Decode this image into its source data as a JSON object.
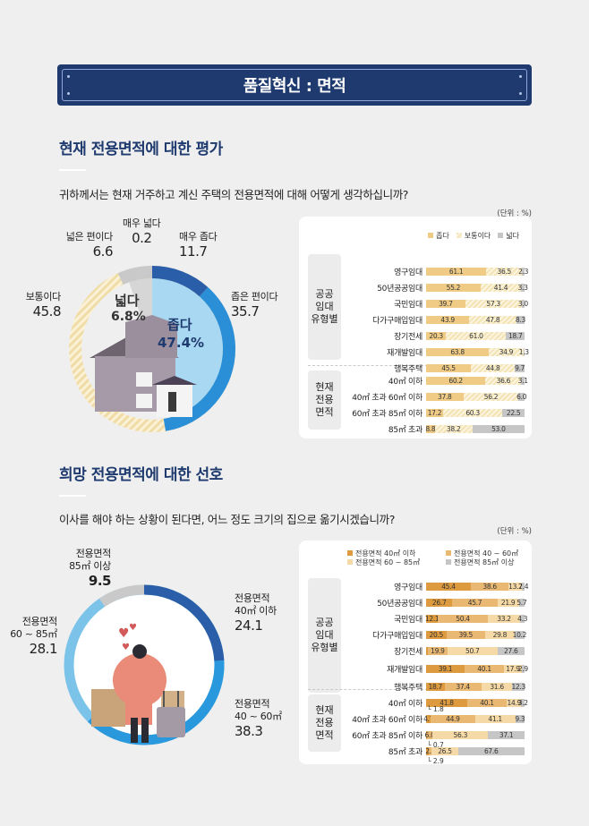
{
  "banner": {
    "title": "품질혁신 : 면적"
  },
  "section1": {
    "title": "현재 전용면적에 대한 평가",
    "question": "귀하께서는 현재 거주하고 계신 주택의 전용면적에 대해 어떻게 생각하십니까?",
    "unit": "(단위 : %)",
    "donut": {
      "center_wide_label": "넓다",
      "center_wide_value": "6.8%",
      "center_narrow_label": "좁다",
      "center_narrow_value": "47.4%",
      "labels": [
        {
          "name": "매우 넓다",
          "value": "0.2"
        },
        {
          "name": "넓은 편이다",
          "value": "6.6"
        },
        {
          "name": "매우 좁다",
          "value": "11.7"
        },
        {
          "name": "좁은 편이다",
          "value": "35.7"
        },
        {
          "name": "보통이다",
          "value": "45.8"
        }
      ]
    },
    "legend": [
      "좁다",
      "보통이다",
      "넓다"
    ],
    "groups": [
      "공공\n임대\n유형별",
      "현재\n전용\n면적"
    ],
    "group1_label": "공공 임대 유형별",
    "group2_label": "현재 전용 면적"
  },
  "section2": {
    "title": "희망 전용면적에 대한 선호",
    "question": "이사를 해야 하는 상황이 된다면, 어느 정도 크기의 집으로 옮기시겠습니까?",
    "unit": "(단위 : %)",
    "donut": {
      "labels": [
        {
          "name1": "전용면적",
          "name2": "85㎡ 이상",
          "value": "9.5"
        },
        {
          "name1": "전용면적",
          "name2": "40㎡ 이하",
          "value": "24.1"
        },
        {
          "name1": "전용면적",
          "name2": "60 ~ 85㎡",
          "value": "28.1"
        },
        {
          "name1": "전용면적",
          "name2": "40 ~ 60㎡",
          "value": "38.3"
        }
      ]
    },
    "legend": [
      "전용면적 40㎡ 이하",
      "전용면적 40 ~ 60㎡",
      "전용면적 60 ~ 85㎡",
      "전용면적 85㎡ 이상"
    ],
    "group1_label": "공공 임대 유형별",
    "group2_label": "현재 전용 면적",
    "notes": [
      "1.8",
      "0.7",
      "2.9"
    ]
  },
  "chart_data": [
    {
      "type": "pie",
      "title": "현재 전용면적에 대한 평가",
      "categories": [
        "매우 좁다",
        "좁은 편이다",
        "보통이다",
        "넓은 편이다",
        "매우 넓다"
      ],
      "values": [
        11.7,
        35.7,
        45.8,
        6.6,
        0.2
      ],
      "summary": {
        "좁다": 47.4,
        "넓다": 6.8
      },
      "unit": "%"
    },
    {
      "type": "bar",
      "orientation": "horizontal-stacked",
      "title": "현재 전용면적에 대한 평가 (유형별)",
      "categories": [
        "영구임대",
        "50년공공임대",
        "국민임대",
        "다가구매입임대",
        "장기전세",
        "재개발임대",
        "행복주택",
        "40㎡ 이하",
        "40㎡ 초과 60㎡ 이하",
        "60㎡ 초과 85㎡ 이하",
        "85㎡ 초과"
      ],
      "series": [
        {
          "name": "좁다",
          "values": [
            61.1,
            55.2,
            39.7,
            43.9,
            20.3,
            63.8,
            45.5,
            60.2,
            37.8,
            17.2,
            8.8
          ]
        },
        {
          "name": "보통이다",
          "values": [
            36.5,
            41.4,
            57.3,
            47.8,
            61.0,
            34.9,
            44.8,
            36.6,
            56.2,
            60.3,
            38.2
          ]
        },
        {
          "name": "넓다",
          "values": [
            2.3,
            3.3,
            3.0,
            8.3,
            18.7,
            1.3,
            9.7,
            3.1,
            6.0,
            22.5,
            53.0
          ]
        }
      ],
      "groups": {
        "공공 임대 유형별": [
          0,
          1,
          2,
          3,
          4,
          5,
          6
        ],
        "현재 전용 면적": [
          7,
          8,
          9,
          10
        ]
      },
      "unit": "%"
    },
    {
      "type": "pie",
      "title": "희망 전용면적에 대한 선호",
      "categories": [
        "전용면적 40㎡ 이하",
        "전용면적 40 ~ 60㎡",
        "전용면적 60 ~ 85㎡",
        "전용면적 85㎡ 이상"
      ],
      "values": [
        24.1,
        38.3,
        28.1,
        9.5
      ],
      "unit": "%"
    },
    {
      "type": "bar",
      "orientation": "horizontal-stacked",
      "title": "희망 전용면적에 대한 선호 (유형별)",
      "categories": [
        "영구임대",
        "50년공공임대",
        "국민임대",
        "다가구매입임대",
        "장기전세",
        "재개발임대",
        "행복주택",
        "40㎡ 이하",
        "40㎡ 초과 60㎡ 이하",
        "60㎡ 초과 85㎡ 이하",
        "85㎡ 초과"
      ],
      "series": [
        {
          "name": "전용면적 40㎡ 이하",
          "values": [
            45.4,
            26.7,
            12.1,
            20.5,
            1.8,
            39.1,
            18.7,
            41.8,
            4.7,
            0.7,
            2.9
          ]
        },
        {
          "name": "전용면적 40 ~ 60㎡",
          "values": [
            38.6,
            45.7,
            50.4,
            39.5,
            19.9,
            40.1,
            37.4,
            40.1,
            44.9,
            6.0,
            2.9
          ]
        },
        {
          "name": "전용면적 60 ~ 85㎡",
          "values": [
            13.7,
            21.9,
            33.2,
            29.8,
            50.7,
            17.9,
            31.6,
            14.9,
            41.1,
            56.3,
            26.5
          ]
        },
        {
          "name": "전용면적 85㎡ 이상",
          "values": [
            2.4,
            5.7,
            4.3,
            10.2,
            27.6,
            2.9,
            12.3,
            3.2,
            9.3,
            37.1,
            67.6
          ]
        }
      ],
      "groups": {
        "공공 임대 유형별": [
          0,
          1,
          2,
          3,
          4,
          5,
          6
        ],
        "현재 전용 면적": [
          7,
          8,
          9,
          10
        ]
      },
      "unit": "%"
    }
  ]
}
